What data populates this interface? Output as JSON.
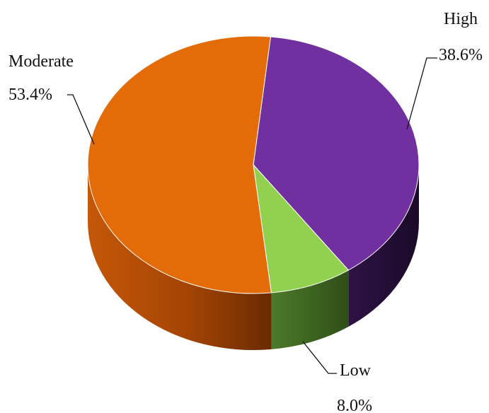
{
  "chart_data": {
    "type": "pie",
    "style": "3d",
    "slices": [
      {
        "label": "High",
        "value": 38.6,
        "display": "38.6%",
        "color": "#7030a0"
      },
      {
        "label": "Low",
        "value": 8.0,
        "display": "8.0%",
        "color": "#92d050"
      },
      {
        "label": "Moderate",
        "value": 53.4,
        "display": "53.4%",
        "color": "#e36c09"
      }
    ]
  }
}
